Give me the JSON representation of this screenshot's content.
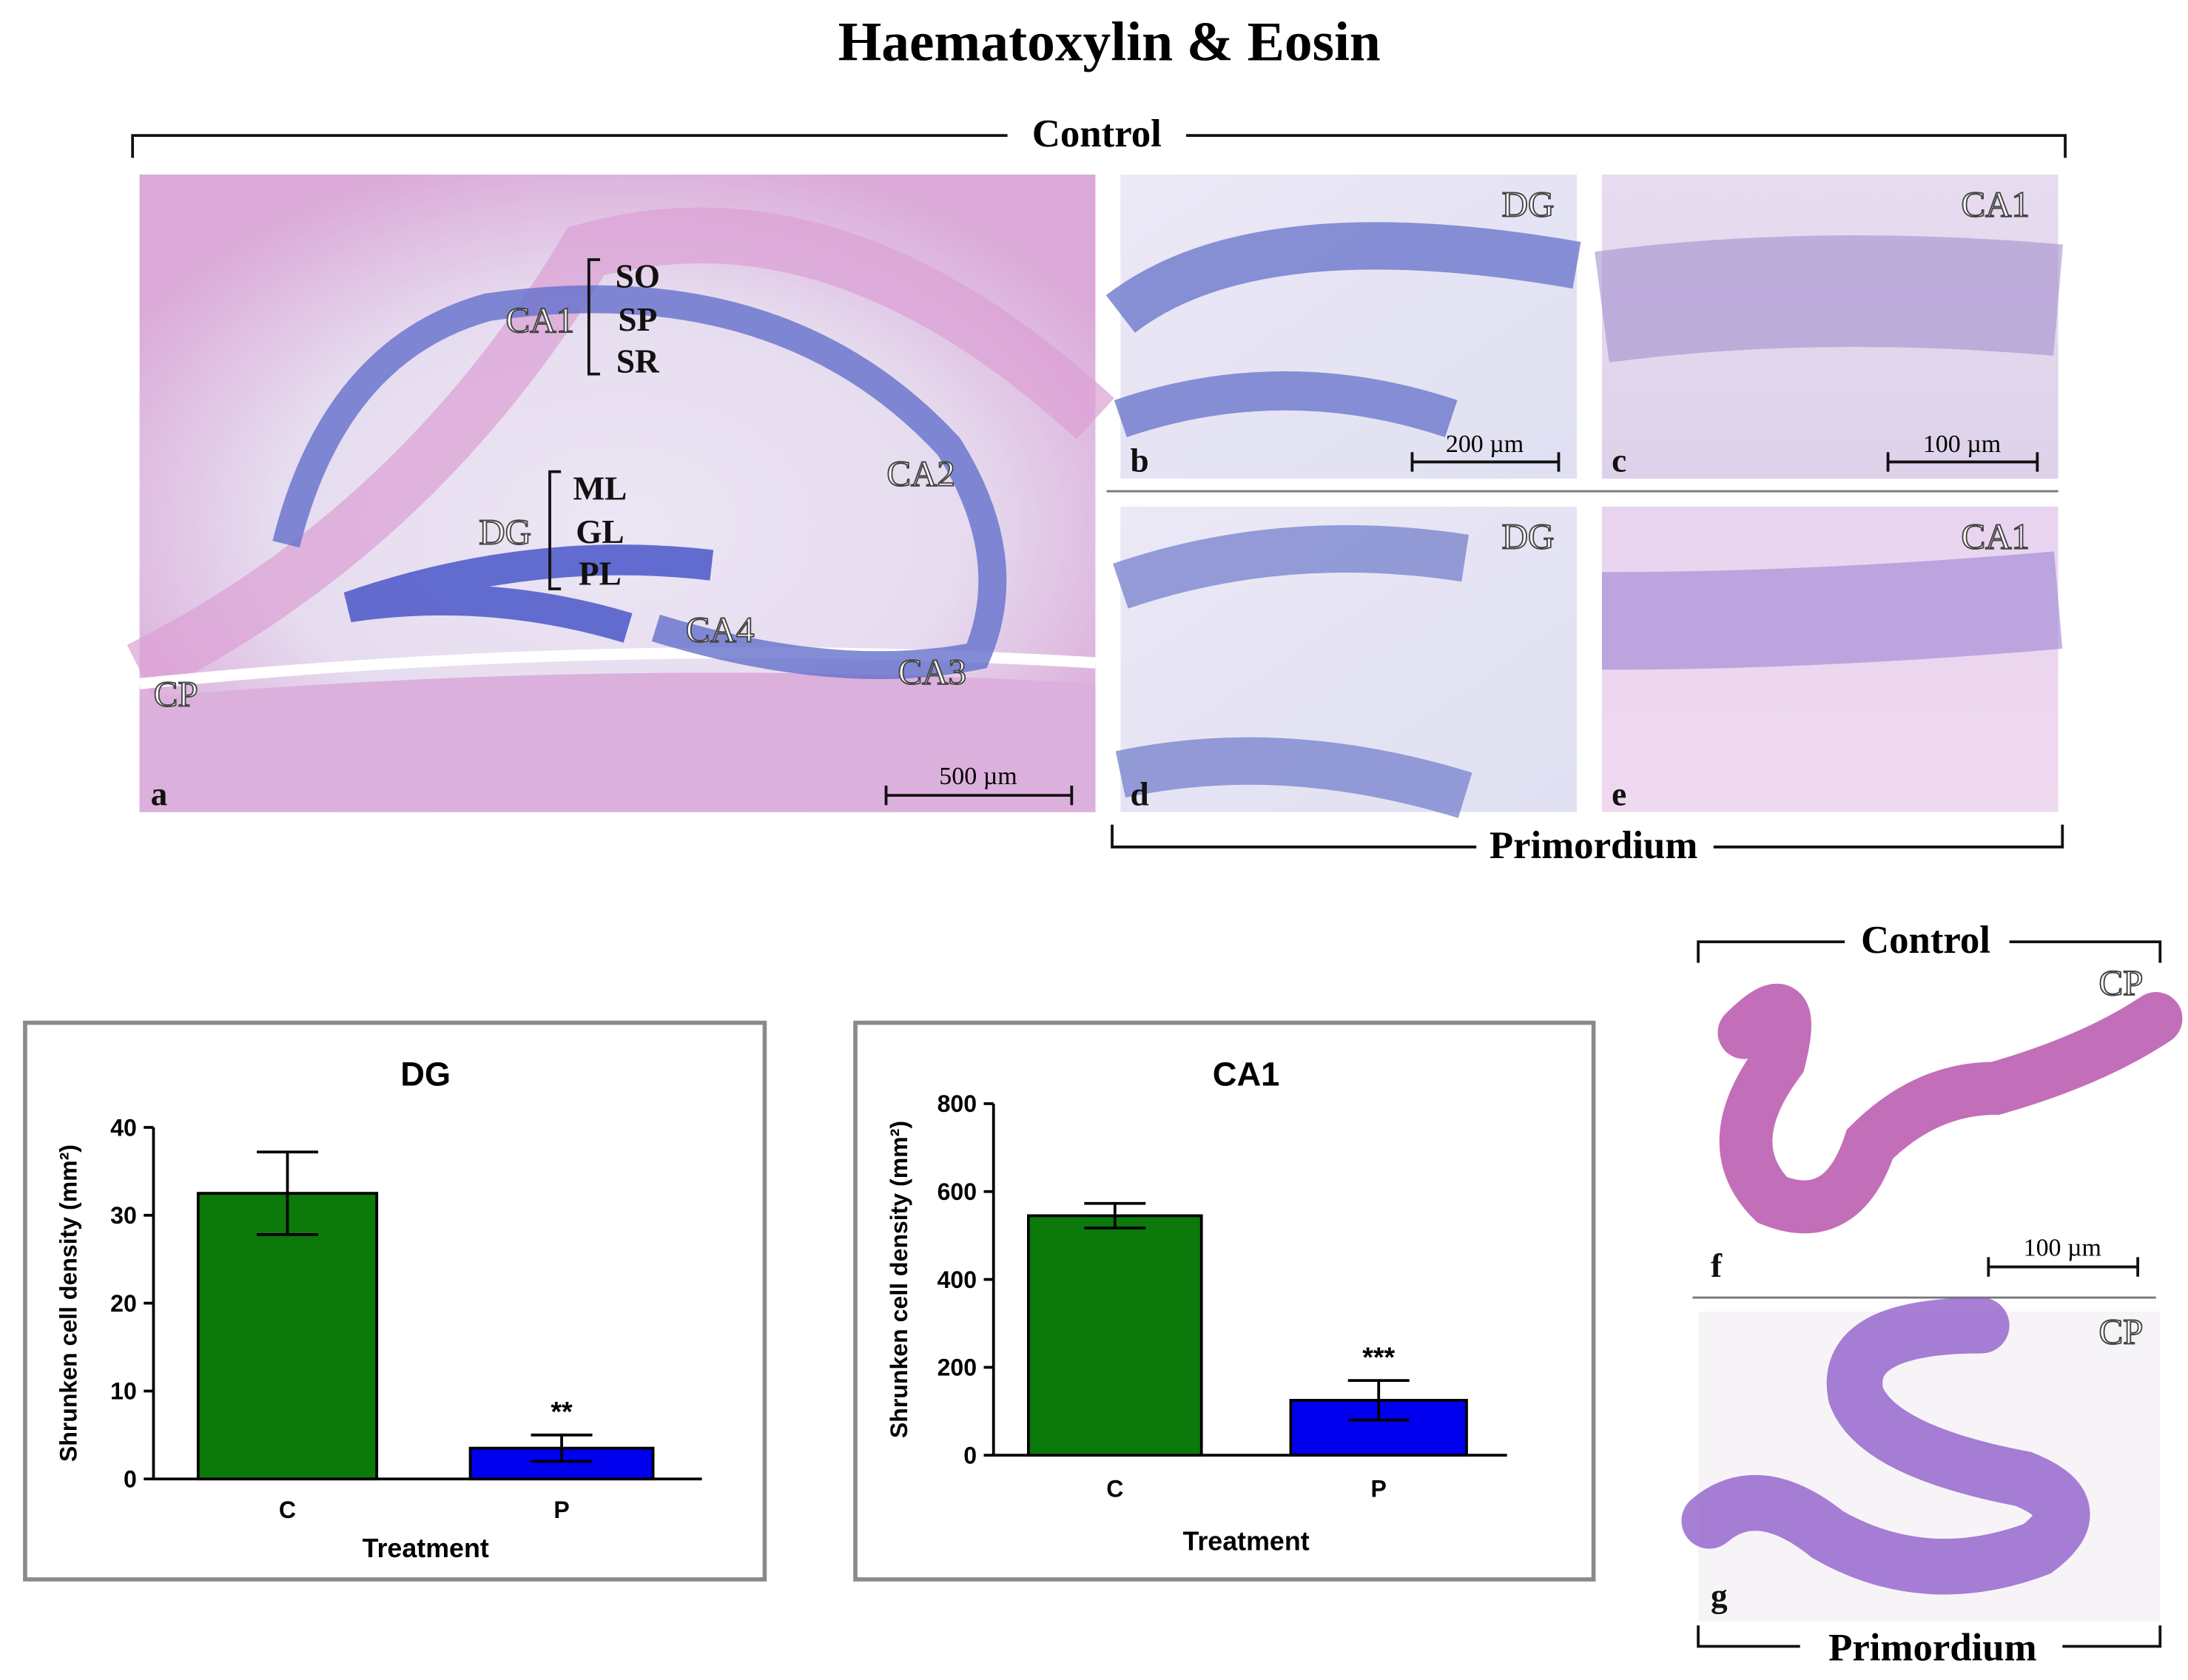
{
  "title": "Haematoxylin & Eosin",
  "top_groups": [
    "Control",
    "Primordium"
  ],
  "side_groups": [
    "Control",
    "Primordium"
  ],
  "panels": {
    "a": {
      "letter": "a",
      "scale_bar": "500 µm",
      "regions": [
        "CA1",
        "CA2",
        "CA3",
        "CA4",
        "DG",
        "CP"
      ],
      "ca1_layers": [
        "SO",
        "SP",
        "SR"
      ],
      "dg_layers": [
        "ML",
        "GL",
        "PL"
      ]
    },
    "b": {
      "letter": "b",
      "region": "DG",
      "scale_bar": "200 µm"
    },
    "c": {
      "letter": "c",
      "region": "CA1",
      "scale_bar": "100 µm"
    },
    "d": {
      "letter": "d",
      "region": "DG"
    },
    "e": {
      "letter": "e",
      "region": "CA1"
    },
    "f": {
      "letter": "f",
      "region": "CP",
      "scale_bar": "100 µm"
    },
    "g": {
      "letter": "g",
      "region": "CP"
    }
  },
  "chart_data": [
    {
      "type": "bar",
      "title": "DG",
      "y_label": "Shrunken cell density (mm²)",
      "x_label": "Treatment",
      "categories": [
        "C",
        "P"
      ],
      "values": [
        32.5,
        3.5
      ],
      "errors": [
        4.7,
        1.5
      ],
      "colors": [
        "#0b7a0b",
        "#0000ee"
      ],
      "ylim": [
        0,
        40
      ],
      "yticks": [
        0,
        10,
        20,
        30,
        40
      ],
      "annotations": [
        {
          "category": "P",
          "text": "**"
        }
      ]
    },
    {
      "type": "bar",
      "title": "CA1",
      "y_label": "Shrunken cell density (mm²)",
      "x_label": "Treatment",
      "categories": [
        "C",
        "P"
      ],
      "values": [
        545,
        125
      ],
      "errors": [
        28,
        45
      ],
      "colors": [
        "#0b7a0b",
        "#0000ee"
      ],
      "ylim": [
        0,
        800
      ],
      "yticks": [
        0,
        200,
        400,
        600,
        800
      ],
      "annotations": [
        {
          "category": "P",
          "text": "***"
        }
      ]
    }
  ]
}
